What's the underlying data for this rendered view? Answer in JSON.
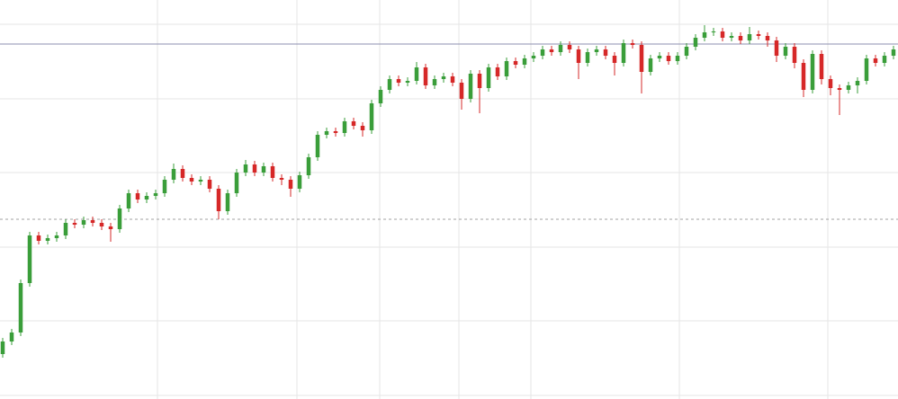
{
  "chart_data": {
    "type": "candlestick",
    "open": [
      50,
      64,
      74,
      129,
      182,
      176,
      179,
      182,
      196,
      194,
      199,
      196,
      192,
      189,
      212,
      229,
      222,
      226,
      229,
      244,
      256,
      246,
      242,
      244,
      234,
      209,
      229,
      252,
      261,
      252,
      259,
      246,
      244,
      234,
      249,
      269,
      294,
      298,
      296,
      309,
      304,
      299,
      329,
      344,
      356,
      352,
      354,
      369,
      349,
      356,
      359,
      352,
      334,
      362,
      346,
      369,
      359,
      376,
      372,
      379,
      382,
      389,
      386,
      394,
      389,
      374,
      386,
      389,
      382,
      374,
      396,
      394,
      364,
      379,
      382,
      376,
      382,
      392,
      402,
      408,
      409,
      402,
      404,
      399,
      406,
      404,
      399,
      382,
      392,
      374,
      344,
      384,
      356,
      346,
      344,
      349,
      354,
      379,
      374,
      382
    ],
    "high": [
      68,
      78,
      133,
      186,
      186,
      183,
      186,
      200,
      200,
      203,
      203,
      200,
      196,
      216,
      233,
      233,
      230,
      233,
      248,
      262,
      260,
      250,
      248,
      248,
      238,
      233,
      256,
      266,
      265,
      263,
      263,
      250,
      248,
      253,
      273,
      298,
      302,
      302,
      313,
      313,
      308,
      333,
      348,
      360,
      360,
      358,
      375,
      373,
      360,
      363,
      363,
      356,
      366,
      366,
      373,
      373,
      380,
      380,
      383,
      386,
      393,
      393,
      398,
      398,
      393,
      390,
      393,
      393,
      386,
      400,
      400,
      398,
      383,
      386,
      386,
      386,
      396,
      406,
      416,
      413,
      413,
      408,
      408,
      414,
      410,
      408,
      403,
      396,
      396,
      378,
      388,
      388,
      360,
      350,
      353,
      358,
      383,
      383,
      386,
      393
    ],
    "low": [
      46,
      60,
      70,
      125,
      172,
      172,
      175,
      178,
      190,
      190,
      192,
      188,
      175,
      185,
      208,
      218,
      218,
      222,
      225,
      240,
      242,
      238,
      238,
      230,
      200,
      205,
      225,
      248,
      248,
      248,
      242,
      238,
      225,
      230,
      245,
      265,
      290,
      292,
      292,
      300,
      292,
      295,
      325,
      340,
      348,
      348,
      350,
      345,
      345,
      352,
      348,
      322,
      330,
      318,
      342,
      355,
      355,
      368,
      368,
      375,
      378,
      382,
      382,
      385,
      356,
      370,
      382,
      378,
      360,
      370,
      390,
      340,
      360,
      375,
      372,
      372,
      378,
      388,
      398,
      404,
      398,
      398,
      395,
      395,
      400,
      392,
      375,
      378,
      368,
      336,
      340,
      350,
      338,
      316,
      340,
      340,
      350,
      370,
      370,
      378
    ],
    "close": [
      64,
      74,
      129,
      182,
      176,
      179,
      182,
      196,
      194,
      199,
      196,
      192,
      189,
      212,
      229,
      222,
      226,
      229,
      244,
      256,
      246,
      242,
      244,
      234,
      209,
      229,
      252,
      261,
      252,
      259,
      246,
      244,
      234,
      249,
      269,
      294,
      298,
      296,
      309,
      304,
      299,
      329,
      344,
      356,
      352,
      354,
      369,
      349,
      356,
      359,
      352,
      334,
      362,
      346,
      369,
      359,
      376,
      372,
      379,
      382,
      389,
      386,
      394,
      389,
      374,
      386,
      389,
      382,
      374,
      396,
      394,
      364,
      379,
      382,
      376,
      382,
      392,
      402,
      408,
      409,
      402,
      404,
      399,
      406,
      404,
      399,
      382,
      392,
      374,
      344,
      384,
      356,
      346,
      344,
      349,
      354,
      379,
      374,
      382,
      389
    ],
    "up_color": "#3a9e3a",
    "down_color": "#d62828",
    "ylim": [
      0,
      444
    ],
    "yticks": [
      4,
      87,
      169,
      252,
      334,
      417
    ],
    "xlim": [
      -0.3,
      99.5
    ],
    "xticks": [
      17.2,
      32.7,
      41.9,
      50.7,
      58.7,
      75.2,
      91.7
    ],
    "grid": true,
    "grid_color": "#e6e6e6",
    "reference_lines": [
      {
        "value": 395,
        "style": "solid",
        "color": "#8e8fb0"
      },
      {
        "value": 200,
        "style": "dashed",
        "color": "#a0a0a0"
      }
    ]
  }
}
